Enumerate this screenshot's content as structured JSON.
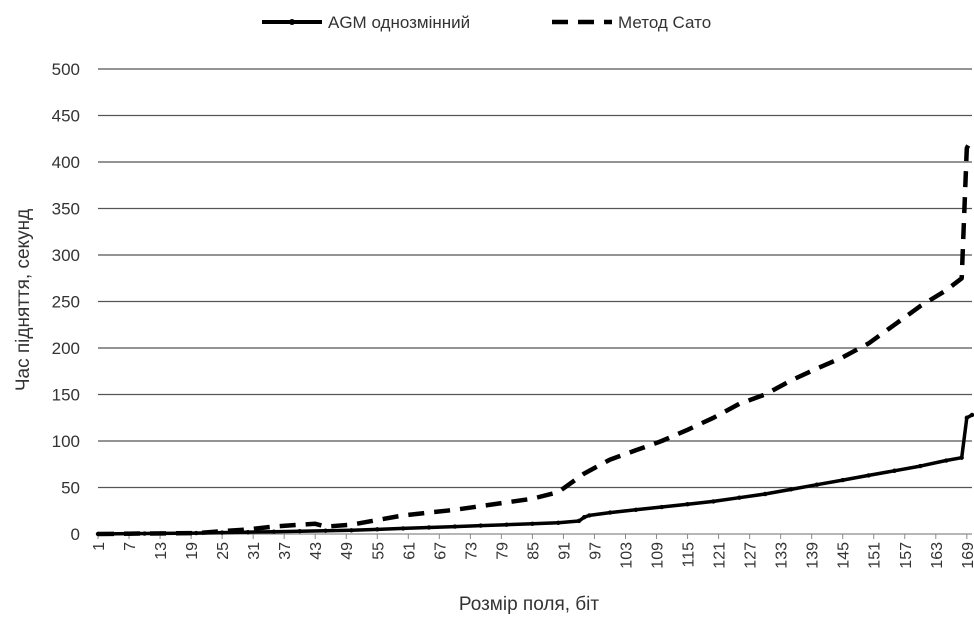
{
  "chart_data": {
    "type": "line",
    "title": "",
    "xlabel": "Розмір поля, біт",
    "ylabel": "Час підняття, секунд",
    "ylim": [
      0,
      500
    ],
    "yticks": [
      0,
      50,
      100,
      150,
      200,
      250,
      300,
      350,
      400,
      450,
      500
    ],
    "xlim": [
      1,
      170
    ],
    "xticks": [
      "1",
      "7",
      "13",
      "19",
      "25",
      "31",
      "37",
      "43",
      "49",
      "55",
      "61",
      "67",
      "73",
      "79",
      "85",
      "91",
      "97",
      "103",
      "109",
      "115",
      "121",
      "127",
      "133",
      "139",
      "145",
      "151",
      "157",
      "163",
      "169"
    ],
    "grid": "horizontal",
    "legend_position": "top",
    "series": [
      {
        "name": "AGM однозмінний",
        "style": "solid-with-markers",
        "color": "#000000",
        "x": [
          1,
          10,
          20,
          25,
          30,
          35,
          40,
          45,
          50,
          55,
          60,
          65,
          70,
          75,
          80,
          85,
          90,
          94,
          95,
          96,
          100,
          105,
          110,
          115,
          120,
          125,
          130,
          135,
          140,
          145,
          150,
          155,
          160,
          165,
          168,
          169,
          170
        ],
        "y": [
          0,
          0.5,
          1,
          1.5,
          2,
          2.5,
          3,
          3.5,
          4,
          5,
          6,
          7,
          8,
          9,
          10,
          11,
          12,
          14,
          18,
          20,
          23,
          26,
          29,
          32,
          35,
          39,
          43,
          48,
          53,
          58,
          63,
          68,
          73,
          79,
          82,
          125,
          128
        ]
      },
      {
        "name": "Метод Сато",
        "style": "dashed",
        "color": "#000000",
        "x": [
          1,
          10,
          20,
          25,
          30,
          35,
          40,
          43,
          45,
          50,
          55,
          60,
          65,
          70,
          75,
          80,
          85,
          90,
          95,
          100,
          105,
          110,
          115,
          120,
          125,
          130,
          135,
          140,
          145,
          150,
          155,
          160,
          165,
          168,
          169,
          170
        ],
        "y": [
          0,
          0.5,
          1,
          3,
          5,
          8,
          10,
          11,
          8,
          10,
          15,
          20,
          23,
          26,
          30,
          34,
          38,
          45,
          65,
          80,
          90,
          100,
          112,
          125,
          140,
          150,
          165,
          178,
          190,
          205,
          225,
          245,
          262,
          275,
          415,
          425
        ]
      }
    ]
  }
}
